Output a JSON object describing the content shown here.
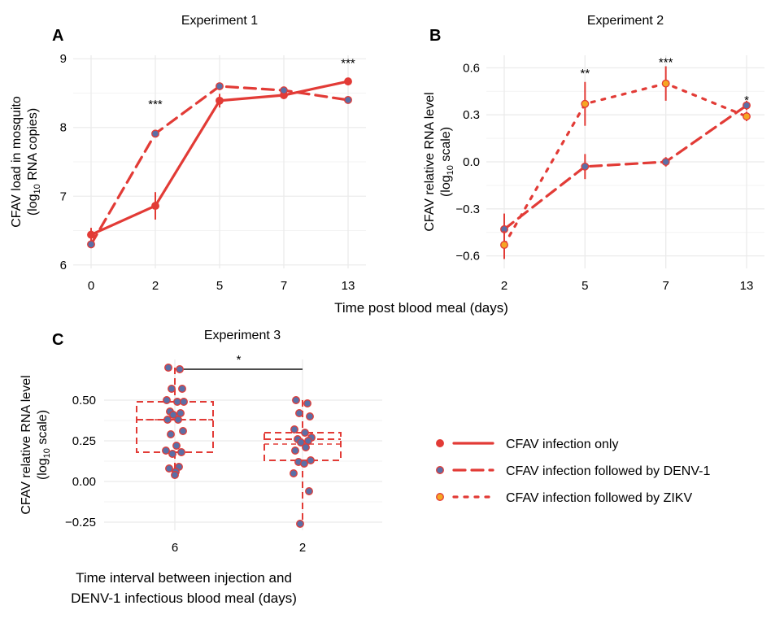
{
  "figure": {
    "shared_xlabel": "Time post blood meal (days)",
    "colors": {
      "line": "#e23b36",
      "point_denv": "#5b6fa6",
      "point_zikv": "#f5a623",
      "grid": "#ebebeb",
      "text": "#1a1a1a"
    }
  },
  "chart_data": [
    {
      "panel": "A",
      "type": "line",
      "title": "Experiment 1",
      "ylabel_line1": "CFAV load in mosquito",
      "ylabel_line2": "(log10 RNA copies)",
      "x": [
        0,
        2,
        5,
        7,
        13
      ],
      "xticks": [
        "0",
        "2",
        "5",
        "7",
        "13"
      ],
      "yticks": [
        6,
        7,
        8,
        9
      ],
      "ylim": [
        5.95,
        9.05
      ],
      "series": [
        {
          "style": "solid",
          "point": "#e23b36",
          "values": [
            6.44,
            6.86,
            8.39,
            8.47,
            8.67
          ],
          "err": [
            0.1,
            0.2,
            0.1,
            0.05,
            0.03
          ]
        },
        {
          "style": "dashed",
          "point": "#5b6fa6",
          "values": [
            6.3,
            7.91,
            8.6,
            8.54,
            8.4
          ],
          "err": [
            0.03,
            0.04,
            0.04,
            0.03,
            0.03
          ]
        }
      ],
      "annotations": [
        {
          "x": 2,
          "y": 8.35,
          "text": "***"
        },
        {
          "x": 13,
          "y": 8.95,
          "text": "***"
        }
      ],
      "grid": true
    },
    {
      "panel": "B",
      "type": "line",
      "title": "Experiment 2",
      "ylabel_line1": "CFAV relative RNA level",
      "ylabel_line2": "(log10 scale)",
      "x": [
        2,
        5,
        7,
        13
      ],
      "xticks": [
        "2",
        "5",
        "7",
        "13"
      ],
      "yticks": [
        -0.6,
        -0.3,
        0.0,
        0.3,
        0.6
      ],
      "ytick_labels": [
        "−0.6",
        "−0.3",
        "0.0",
        "0.3",
        "0.6"
      ],
      "ylim": [
        -0.68,
        0.68
      ],
      "series": [
        {
          "style": "dashed",
          "point": "#5b6fa6",
          "values": [
            -0.43,
            -0.03,
            0.0,
            0.36
          ],
          "err": [
            0.1,
            0.08,
            0.03,
            0.03
          ]
        },
        {
          "style": "dotted",
          "point": "#f5a623",
          "values": [
            -0.53,
            0.37,
            0.5,
            0.29
          ],
          "err": [
            0.09,
            0.14,
            0.11,
            0.03
          ]
        }
      ],
      "annotations": [
        {
          "x": 5,
          "y": 0.57,
          "text": "**"
        },
        {
          "x": 7,
          "y": 0.64,
          "text": "***"
        },
        {
          "x": 13,
          "y": 0.4,
          "text": "*"
        }
      ],
      "grid": true
    },
    {
      "panel": "C",
      "type": "boxplot",
      "title": "Experiment 3",
      "ylabel_line1": "CFAV relative RNA level",
      "ylabel_line2": "(log10 scale)",
      "xlabel_line1": "Time interval between injection and",
      "xlabel_line2": "DENV-1 infectious blood meal (days)",
      "categories": [
        "6",
        "2"
      ],
      "yticks": [
        -0.25,
        0.0,
        0.25,
        0.5
      ],
      "ytick_labels": [
        "−0.25",
        "0.00",
        "0.25",
        "0.50"
      ],
      "ylim": [
        -0.3,
        0.75
      ],
      "boxes": [
        {
          "q1": 0.18,
          "median": 0.38,
          "q3": 0.49,
          "mean": 0.38
        },
        {
          "q1": 0.13,
          "median": 0.26,
          "q3": 0.3,
          "mean": 0.23
        }
      ],
      "points": [
        [
          0.7,
          0.69,
          0.57,
          0.57,
          0.5,
          0.49,
          0.49,
          0.43,
          0.42,
          0.41,
          0.38,
          0.38,
          0.31,
          0.29,
          0.22,
          0.19,
          0.18,
          0.17,
          0.09,
          0.08,
          0.06,
          0.04
        ],
        [
          0.5,
          0.48,
          0.42,
          0.4,
          0.32,
          0.3,
          0.27,
          0.26,
          0.25,
          0.24,
          0.21,
          0.19,
          0.13,
          0.12,
          0.11,
          0.05,
          -0.06,
          -0.26
        ]
      ],
      "significance": "*",
      "grid": true
    }
  ],
  "legend": [
    {
      "label": "CFAV infection only",
      "style": "solid",
      "point": "#e23b36"
    },
    {
      "label": "CFAV infection followed by DENV-1",
      "style": "dashed",
      "point": "#5b6fa6"
    },
    {
      "label": "CFAV infection followed by ZIKV",
      "style": "dotted",
      "point": "#f5a623"
    }
  ]
}
